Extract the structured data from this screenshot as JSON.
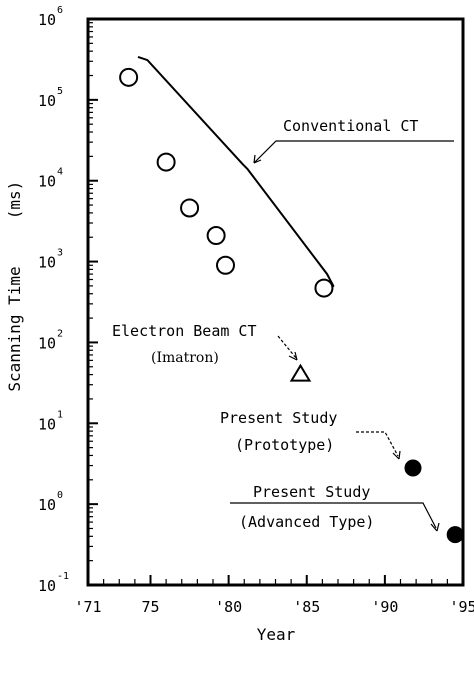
{
  "chart_data": {
    "type": "scatter",
    "xlabel": "Year",
    "ylabel": "Scanning Time",
    "ylabel_unit": "(ms)",
    "xlim": [
      71,
      95
    ],
    "y_scale": "log",
    "ylim_exponents": [
      -1,
      6
    ],
    "x_ticks": [
      {
        "value": 71,
        "label": "'71"
      },
      {
        "value": 75,
        "label": "75"
      },
      {
        "value": 80,
        "label": "'80"
      },
      {
        "value": 85,
        "label": "'85"
      },
      {
        "value": 90,
        "label": "'90"
      },
      {
        "value": 95,
        "label": "'95"
      }
    ],
    "y_ticks": [
      {
        "exponent": -1,
        "base": "10",
        "sup": "-1"
      },
      {
        "exponent": 0,
        "base": "10",
        "sup": "0"
      },
      {
        "exponent": 1,
        "base": "10",
        "sup": "1"
      },
      {
        "exponent": 2,
        "base": "10",
        "sup": "2"
      },
      {
        "exponent": 3,
        "base": "10",
        "sup": "3"
      },
      {
        "exponent": 4,
        "base": "10",
        "sup": "4"
      },
      {
        "exponent": 5,
        "base": "10",
        "sup": "5"
      },
      {
        "exponent": 6,
        "base": "10",
        "sup": "6"
      }
    ],
    "series": [
      {
        "marker": "open-circle",
        "points": [
          {
            "x": 73.6,
            "y": 190000
          },
          {
            "x": 76.0,
            "y": 17000
          },
          {
            "x": 77.5,
            "y": 4600
          },
          {
            "x": 79.2,
            "y": 2100
          },
          {
            "x": 79.8,
            "y": 900
          },
          {
            "x": 86.1,
            "y": 470
          }
        ]
      },
      {
        "marker": "open-triangle",
        "points": [
          {
            "x": 84.6,
            "y": 40
          }
        ]
      },
      {
        "marker": "filled-circle",
        "points": [
          {
            "x": 91.8,
            "y": 2.8
          },
          {
            "x": 94.5,
            "y": 0.42
          }
        ]
      }
    ],
    "trend_line": [
      {
        "x": 74.2,
        "y": 340000
      },
      {
        "x": 74.8,
        "y": 310000
      },
      {
        "x": 80.9,
        "y": 16000
      },
      {
        "x": 81.2,
        "y": 14000
      },
      {
        "x": 86.3,
        "y": 700
      },
      {
        "x": 86.7,
        "y": 500
      },
      {
        "x": 86.3,
        "y": 410
      }
    ],
    "annotations": [
      {
        "lines": [
          "Conventional CT"
        ]
      },
      {
        "lines": [
          "Electron Beam CT",
          "(Imatron)"
        ]
      },
      {
        "lines": [
          "Present Study",
          "(Prototype)"
        ]
      },
      {
        "lines": [
          "Present Study",
          "(Advanced Type)"
        ]
      }
    ]
  }
}
